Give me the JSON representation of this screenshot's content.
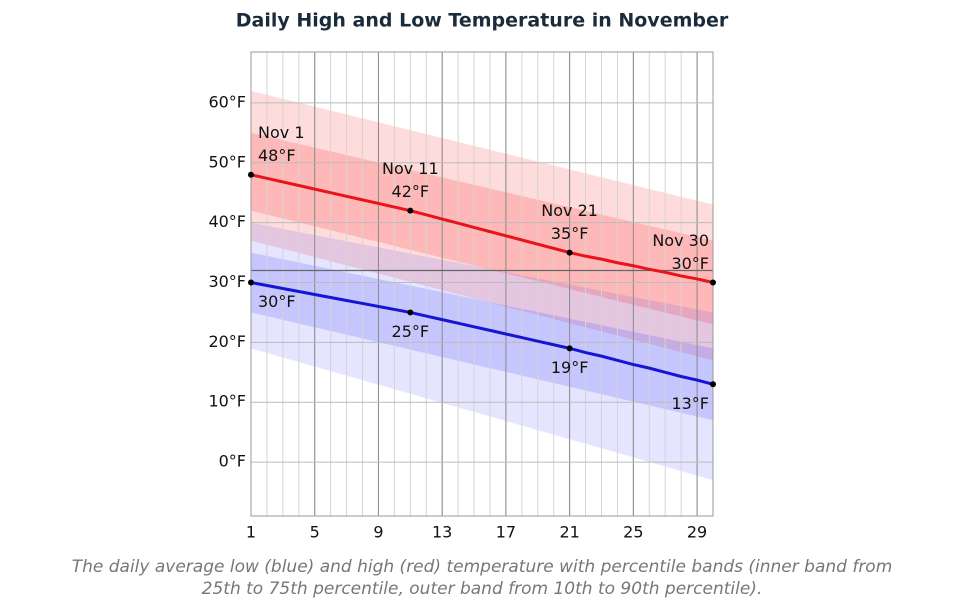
{
  "chart_data": {
    "type": "line",
    "title": "Daily High and Low Temperature in November",
    "caption": [
      "The daily average low (blue) and high (red) temperature with percentile bands (inner band from",
      "25th to 75th percentile, outer band from 10th to 90th percentile)."
    ],
    "xlim": [
      1,
      30
    ],
    "xticks": [
      1,
      5,
      9,
      13,
      17,
      21,
      25,
      29
    ],
    "ylim": [
      -9,
      68.5
    ],
    "yticks": [
      {
        "value": 0,
        "label": "0°F"
      },
      {
        "value": 10,
        "label": "10°F"
      },
      {
        "value": 20,
        "label": "20°F"
      },
      {
        "value": 30,
        "label": "30°F"
      },
      {
        "value": 40,
        "label": "40°F"
      },
      {
        "value": 50,
        "label": "50°F"
      },
      {
        "value": 60,
        "label": "60°F"
      }
    ],
    "grid": true,
    "reference_line": 32,
    "bands": [
      {
        "color": "rgba(255,40,40,0.16)",
        "x": [
          1,
          30
        ],
        "upper": [
          62,
          43
        ],
        "lower": [
          37,
          17
        ]
      },
      {
        "color": "rgba(255,40,40,0.2)",
        "x": [
          1,
          30
        ],
        "upper": [
          55,
          37
        ],
        "lower": [
          42,
          23
        ]
      },
      {
        "color": "rgba(40,40,255,0.12)",
        "x": [
          1,
          30
        ],
        "upper": [
          40,
          25
        ],
        "lower": [
          19,
          -3
        ]
      },
      {
        "color": "rgba(40,40,255,0.16)",
        "x": [
          1,
          30
        ],
        "upper": [
          35,
          19
        ],
        "lower": [
          25,
          7
        ]
      }
    ],
    "series": [
      {
        "color": "#e8141a",
        "label_side": "above",
        "x": [
          1,
          2,
          3,
          4,
          5,
          6,
          7,
          8,
          9,
          10,
          11,
          12,
          13,
          14,
          15,
          16,
          17,
          18,
          19,
          20,
          21,
          22,
          23,
          24,
          25,
          26,
          27,
          28,
          29,
          30
        ],
        "values": [
          48,
          47.4,
          46.8,
          46.2,
          45.6,
          45,
          44.4,
          43.8,
          43.2,
          42.6,
          42,
          41.3,
          40.6,
          39.9,
          39.2,
          38.5,
          37.8,
          37.1,
          36.4,
          35.7,
          35,
          34.4,
          33.9,
          33.3,
          32.8,
          32.2,
          31.7,
          31.1,
          30.6,
          30
        ],
        "annotations": [
          {
            "x": 1,
            "date": "Nov 1",
            "value": 48,
            "label": "48°F"
          },
          {
            "x": 11,
            "date": "Nov 11",
            "value": 42,
            "label": "42°F"
          },
          {
            "x": 21,
            "date": "Nov 21",
            "value": 35,
            "label": "35°F"
          },
          {
            "x": 30,
            "date": "Nov 30",
            "value": 30,
            "label": "30°F"
          }
        ]
      },
      {
        "color": "#1515d4",
        "label_side": "below",
        "x": [
          1,
          2,
          3,
          4,
          5,
          6,
          7,
          8,
          9,
          10,
          11,
          12,
          13,
          14,
          15,
          16,
          17,
          18,
          19,
          20,
          21,
          22,
          23,
          24,
          25,
          26,
          27,
          28,
          29,
          30
        ],
        "values": [
          30,
          29.5,
          29,
          28.5,
          28,
          27.5,
          27,
          26.5,
          26,
          25.5,
          25,
          24.4,
          23.8,
          23.2,
          22.6,
          22,
          21.4,
          20.8,
          20.2,
          19.6,
          19,
          18.3,
          17.7,
          17,
          16.3,
          15.7,
          15,
          14.3,
          13.7,
          13
        ],
        "annotations": [
          {
            "x": 1,
            "value": 30,
            "label": "30°F"
          },
          {
            "x": 11,
            "value": 25,
            "label": "25°F"
          },
          {
            "x": 21,
            "value": 19,
            "label": "19°F"
          },
          {
            "x": 30,
            "value": 13,
            "label": "13°F"
          }
        ]
      }
    ]
  }
}
